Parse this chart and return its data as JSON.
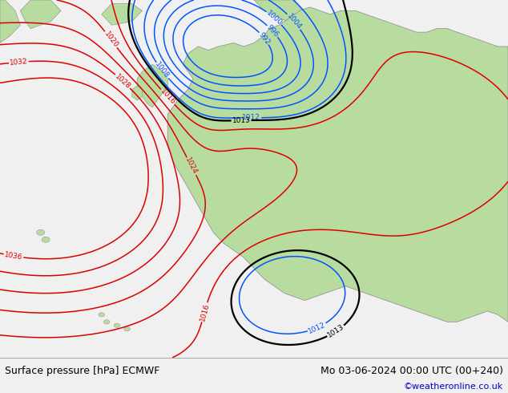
{
  "title_left": "Surface pressure [hPa] ECMWF",
  "title_right": "Mo 03-06-2024 00:00 UTC (00+240)",
  "copyright": "©weatheronline.co.uk",
  "footer_bg": "#f0f0f0",
  "footer_text_color": "#000000",
  "copyright_color": "#0000cc",
  "fig_width": 6.34,
  "fig_height": 4.9,
  "dpi": 100,
  "ocean_color": "#e8e8e8",
  "land_color": "#b8dba0",
  "land_edge_color": "#888888",
  "contour_black_color": "#000000",
  "contour_blue_color": "#0055ff",
  "contour_red_color": "#dd0000",
  "black_levels": [
    1013
  ],
  "blue_levels": [
    992,
    996,
    1000,
    1004,
    1008,
    1012
  ],
  "red_levels": [
    1016,
    1020,
    1024,
    1028,
    1032,
    1036
  ]
}
